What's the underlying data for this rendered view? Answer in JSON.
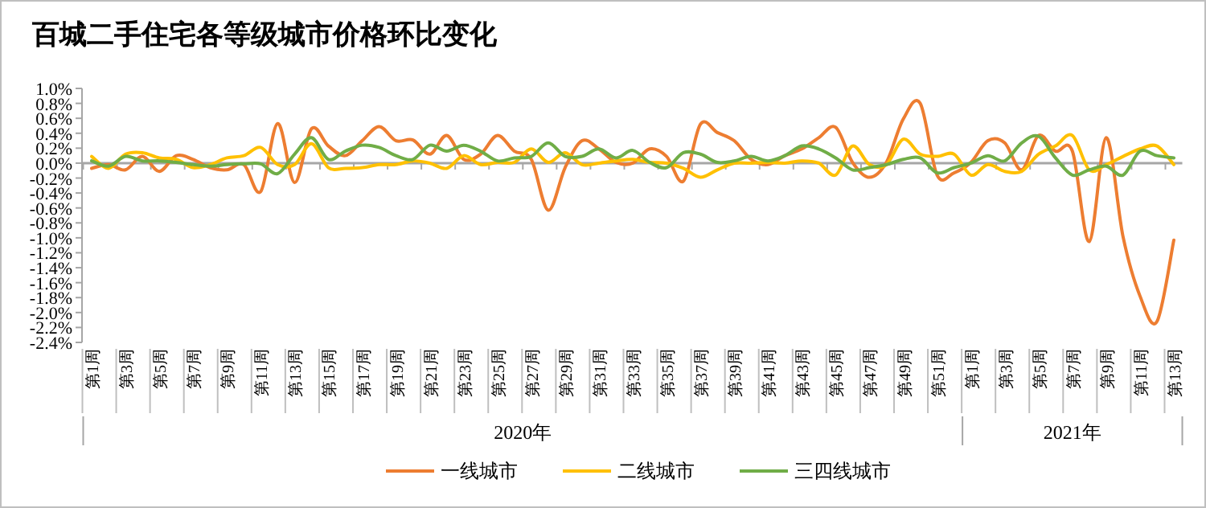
{
  "chart_data": {
    "type": "line",
    "title": "百城二手住宅各等级城市价格环比变化",
    "categories": [
      "第1周",
      null,
      "第3周",
      null,
      "第5周",
      null,
      "第7周",
      null,
      "第9周",
      null,
      "第11周",
      null,
      "第13周",
      null,
      "第15周",
      null,
      "第17周",
      null,
      "第19周",
      null,
      "第21周",
      null,
      "第23周",
      null,
      "第25周",
      null,
      "第27周",
      null,
      "第29周",
      null,
      "第31周",
      null,
      "第33周",
      null,
      "第35周",
      null,
      "第37周",
      null,
      "第39周",
      null,
      "第41周",
      null,
      "第43周",
      null,
      "第45周",
      null,
      "第47周",
      null,
      "第49周",
      null,
      "第51周",
      null,
      "第1周",
      null,
      "第3周",
      null,
      "第5周",
      null,
      "第7周",
      null,
      "第9周",
      null,
      "第11周",
      null,
      "第13周"
    ],
    "series": [
      {
        "name": "一线城市",
        "color": "#ed7d31",
        "values": [
          -0.07,
          -0.02,
          -0.09,
          0.09,
          -0.11,
          0.1,
          0.05,
          -0.06,
          -0.09,
          -0.02,
          -0.38,
          0.53,
          -0.26,
          0.46,
          0.23,
          0.1,
          0.3,
          0.49,
          0.3,
          0.31,
          0.12,
          0.37,
          0.05,
          0.12,
          0.37,
          0.16,
          0.05,
          -0.63,
          -0.06,
          0.3,
          0.19,
          0.01,
          0,
          0.19,
          0.09,
          -0.24,
          0.52,
          0.41,
          0.3,
          0.05,
          -0.02,
          0.1,
          0.19,
          0.34,
          0.48,
          0.01,
          -0.19,
          0.01,
          0.59,
          0.8,
          -0.16,
          -0.13,
          0.01,
          0.3,
          0.27,
          -0.09,
          0.37,
          0.16,
          0.16,
          -1.05,
          0.34,
          -0.99,
          -1.78,
          -2.12,
          -1.03
        ]
      },
      {
        "name": "二线城市",
        "color": "#ffc000",
        "values": [
          0.09,
          -0.07,
          0.12,
          0.14,
          0.07,
          0.05,
          -0.06,
          -0.02,
          0.07,
          0.1,
          0.21,
          -0.02,
          -0.02,
          0.26,
          -0.06,
          -0.07,
          -0.06,
          -0.02,
          -0.02,
          0.03,
          0,
          -0.07,
          0.1,
          -0.02,
          0.01,
          0.01,
          0.19,
          0.01,
          0.14,
          -0.02,
          0,
          0.03,
          0.05,
          0.01,
          0,
          -0.07,
          -0.19,
          -0.09,
          0,
          0,
          0.01,
          0,
          0.03,
          0,
          -0.16,
          0.23,
          -0.02,
          -0.02,
          0.32,
          0.12,
          0.09,
          0.12,
          -0.16,
          -0.02,
          -0.11,
          -0.11,
          0.12,
          0.23,
          0.37,
          -0.09,
          -0.02,
          0.09,
          0.19,
          0.23,
          -0.02
        ]
      },
      {
        "name": "三四线城市",
        "color": "#70ad47",
        "values": [
          0.03,
          -0.04,
          0.09,
          0.03,
          0.03,
          0.01,
          -0.02,
          -0.04,
          -0.02,
          -0.01,
          -0.01,
          -0.14,
          0.12,
          0.34,
          0.05,
          0.16,
          0.24,
          0.21,
          0.1,
          0.05,
          0.24,
          0.16,
          0.24,
          0.16,
          0.03,
          0.07,
          0.09,
          0.27,
          0.09,
          0.09,
          0.19,
          0.07,
          0.17,
          0.01,
          -0.06,
          0.14,
          0.12,
          0.01,
          0.03,
          0.09,
          0.03,
          0.1,
          0.23,
          0.19,
          0.07,
          -0.09,
          -0.06,
          -0.02,
          0.05,
          0.07,
          -0.13,
          -0.06,
          0,
          0.1,
          0.03,
          0.27,
          0.36,
          0.07,
          -0.16,
          -0.09,
          -0.04,
          -0.16,
          0.16,
          0.1,
          0.07
        ]
      }
    ],
    "ylim": [
      -2.4,
      1.0
    ],
    "yticks": [
      {
        "value": 1.0,
        "label": "1.0%"
      },
      {
        "value": 0.8,
        "label": "0.8%"
      },
      {
        "value": 0.6,
        "label": "0.6%"
      },
      {
        "value": 0.4,
        "label": "0.4%"
      },
      {
        "value": 0.2,
        "label": "0.2%"
      },
      {
        "value": 0,
        "label": "0.0%"
      },
      {
        "value": -0.2,
        "label": "-0.2%"
      },
      {
        "value": -0.4,
        "label": "-0.4%"
      },
      {
        "value": -0.6,
        "label": "-0.6%"
      },
      {
        "value": -0.8,
        "label": "-0.8%"
      },
      {
        "value": -1.0,
        "label": "-1.0%"
      },
      {
        "value": -1.2,
        "label": "-1.2%"
      },
      {
        "value": -1.4,
        "label": "-1.4%"
      },
      {
        "value": -1.6,
        "label": "-1.6%"
      },
      {
        "value": -1.8,
        "label": "-1.8%"
      },
      {
        "value": -2.0,
        "label": "-2.0%"
      },
      {
        "value": -2.2,
        "label": "-2.2%"
      },
      {
        "value": -2.4,
        "label": "-2.4%"
      }
    ],
    "legend": "bottom",
    "annotations": [
      "2020年",
      "2021年"
    ]
  }
}
